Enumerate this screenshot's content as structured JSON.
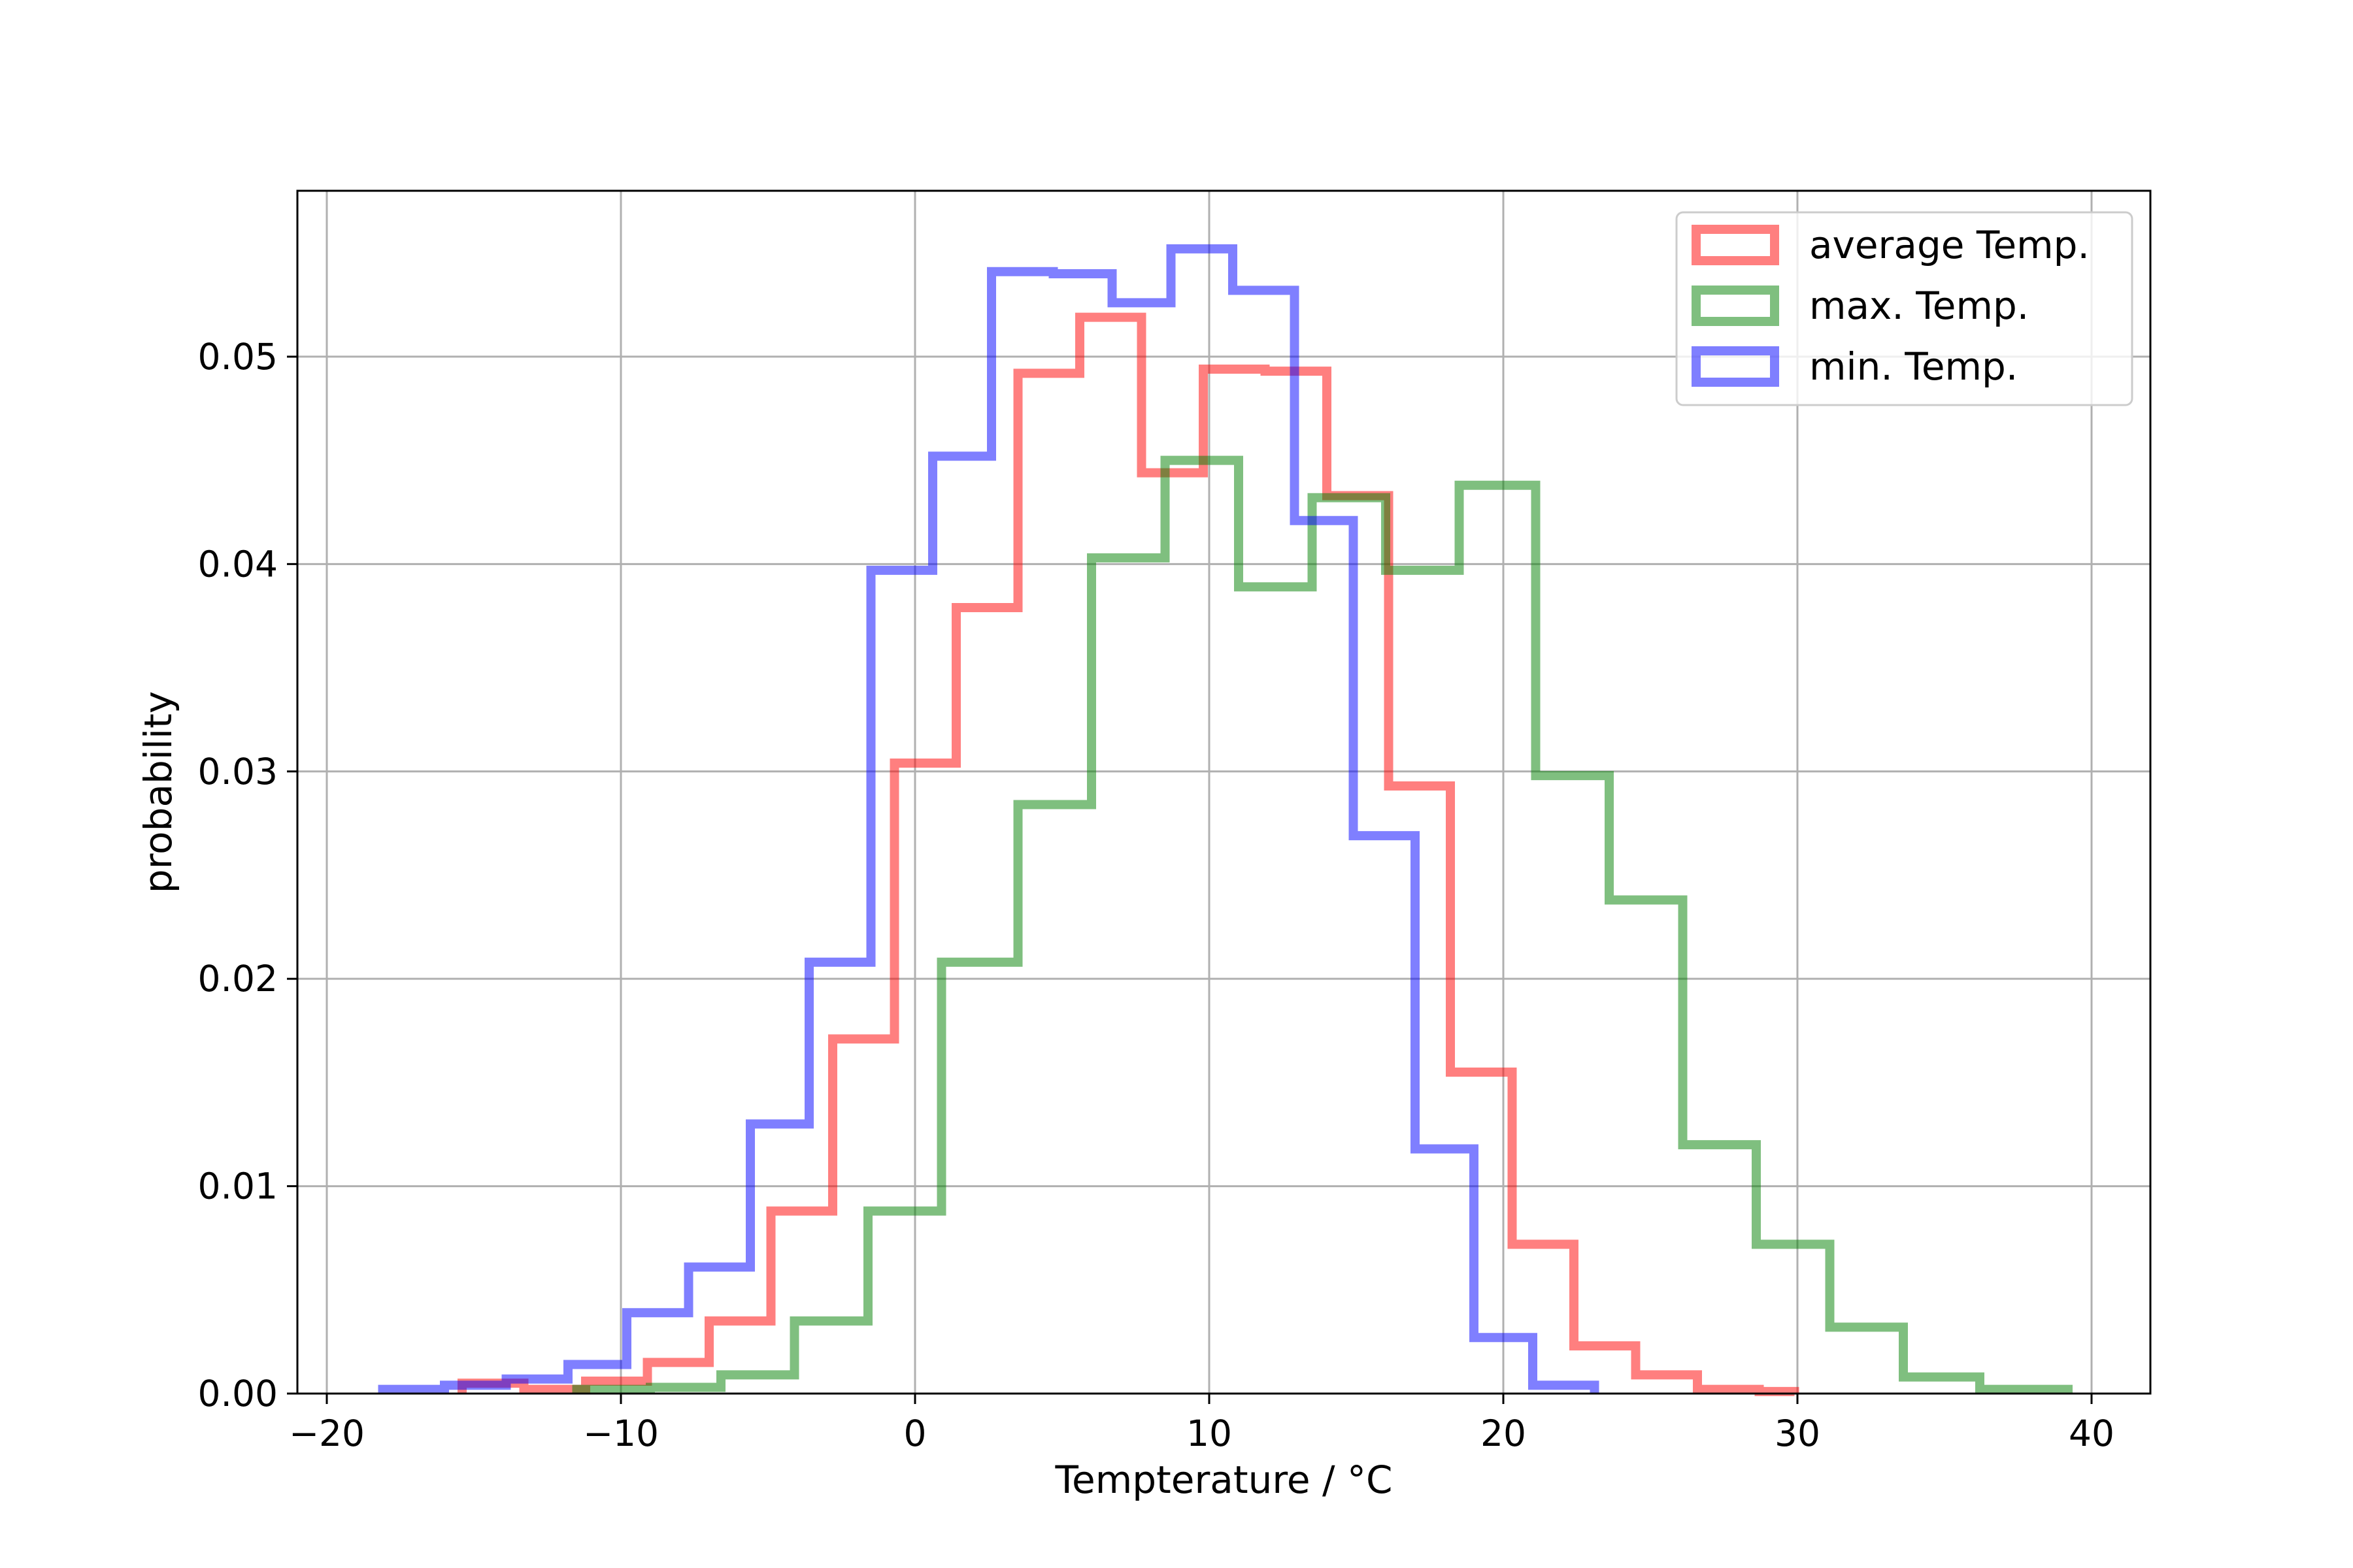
{
  "chart_data": {
    "type": "histogram-step",
    "title": "",
    "xlabel": "Tempterature / °C",
    "ylabel": "probability",
    "xlim": [
      -21,
      42
    ],
    "ylim": [
      0,
      0.058
    ],
    "xticks": [
      -20,
      -10,
      0,
      10,
      20,
      30,
      40
    ],
    "xtick_labels": [
      "−20",
      "−10",
      "0",
      "10",
      "20",
      "30",
      "40"
    ],
    "yticks": [
      0.0,
      0.01,
      0.02,
      0.03,
      0.04,
      0.05
    ],
    "ytick_labels": [
      "0.00",
      "0.01",
      "0.02",
      "0.03",
      "0.04",
      "0.05"
    ],
    "grid": true,
    "legend_position": "top-right",
    "series": [
      {
        "name": "average Temp.",
        "color": "#ff0000",
        "bin_edges": [
          -15.4,
          -13.3,
          -11.2,
          -9.1,
          -7.0,
          -4.9,
          -2.8,
          -0.7,
          1.4,
          3.5,
          5.6,
          7.7,
          9.8,
          11.9,
          14.0,
          16.1,
          18.2,
          20.3,
          22.4,
          24.5,
          26.6,
          28.7,
          29.9
        ],
        "values": [
          0.0005,
          0.0002,
          0.0006,
          0.0015,
          0.0035,
          0.0088,
          0.0171,
          0.0304,
          0.0379,
          0.0492,
          0.0519,
          0.0444,
          0.0494,
          0.0493,
          0.0433,
          0.0293,
          0.0155,
          0.0072,
          0.0023,
          0.0009,
          0.0002,
          0.0001
        ]
      },
      {
        "name": "max. Temp.",
        "color": "#008000",
        "bin_edges": [
          -11.5,
          -9.0,
          -6.6,
          -4.1,
          -1.6,
          0.9,
          3.5,
          6.0,
          8.5,
          11.0,
          13.5,
          16.0,
          18.5,
          21.1,
          23.6,
          26.1,
          28.6,
          31.1,
          33.6,
          36.2,
          39.2
        ],
        "values": [
          0.0002,
          0.0003,
          0.0009,
          0.0035,
          0.0088,
          0.0208,
          0.0284,
          0.0403,
          0.045,
          0.0389,
          0.0432,
          0.0397,
          0.0438,
          0.0298,
          0.0238,
          0.012,
          0.0072,
          0.0032,
          0.0008,
          0.0002
        ]
      },
      {
        "name": "min. Temp.",
        "color": "#0000ff",
        "bin_edges": [
          -18.1,
          -16.0,
          -13.9,
          -11.8,
          -9.8,
          -7.7,
          -5.6,
          -3.6,
          -1.5,
          0.6,
          2.6,
          4.7,
          6.7,
          8.7,
          10.8,
          12.9,
          14.9,
          17.0,
          19.0,
          21.0,
          23.1
        ],
        "values": [
          0.0002,
          0.0004,
          0.0007,
          0.0014,
          0.0039,
          0.0061,
          0.013,
          0.0208,
          0.0397,
          0.0452,
          0.0541,
          0.054,
          0.0526,
          0.0552,
          0.0532,
          0.0421,
          0.0269,
          0.0118,
          0.0027,
          0.0004
        ]
      }
    ]
  }
}
